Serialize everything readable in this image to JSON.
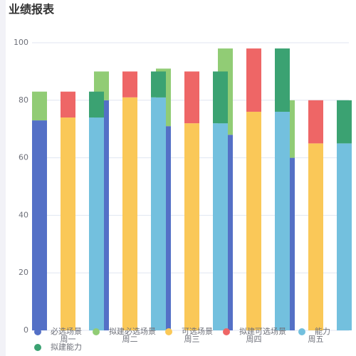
{
  "chart_data": {
    "type": "bar",
    "title": "业绩报表",
    "categories": [
      "周一",
      "周二",
      "周三",
      "周四",
      "周五"
    ],
    "series": [
      {
        "name": "必选场景",
        "color": "#5470c6",
        "values": [
          73,
          80,
          71,
          68,
          60
        ]
      },
      {
        "name": "拟建必选场景",
        "color": "#91cc75",
        "values": [
          10,
          10,
          20,
          30,
          20
        ]
      },
      {
        "name": "可选场景",
        "color": "#fac858",
        "values": [
          74,
          81,
          72,
          76,
          65
        ]
      },
      {
        "name": "拟建可选场景",
        "color": "#ee6666",
        "values": [
          9,
          9,
          18,
          22,
          15
        ]
      },
      {
        "name": "能力",
        "color": "#73c0de",
        "values": [
          74,
          81,
          72,
          76,
          65
        ]
      },
      {
        "name": "拟建能力",
        "color": "#3ba272",
        "values": [
          9,
          9,
          18,
          22,
          15
        ]
      }
    ],
    "ylim": [
      0,
      100
    ],
    "yticks": [
      0,
      20,
      40,
      60,
      80,
      100
    ],
    "grid": true,
    "legend": "bottom"
  }
}
